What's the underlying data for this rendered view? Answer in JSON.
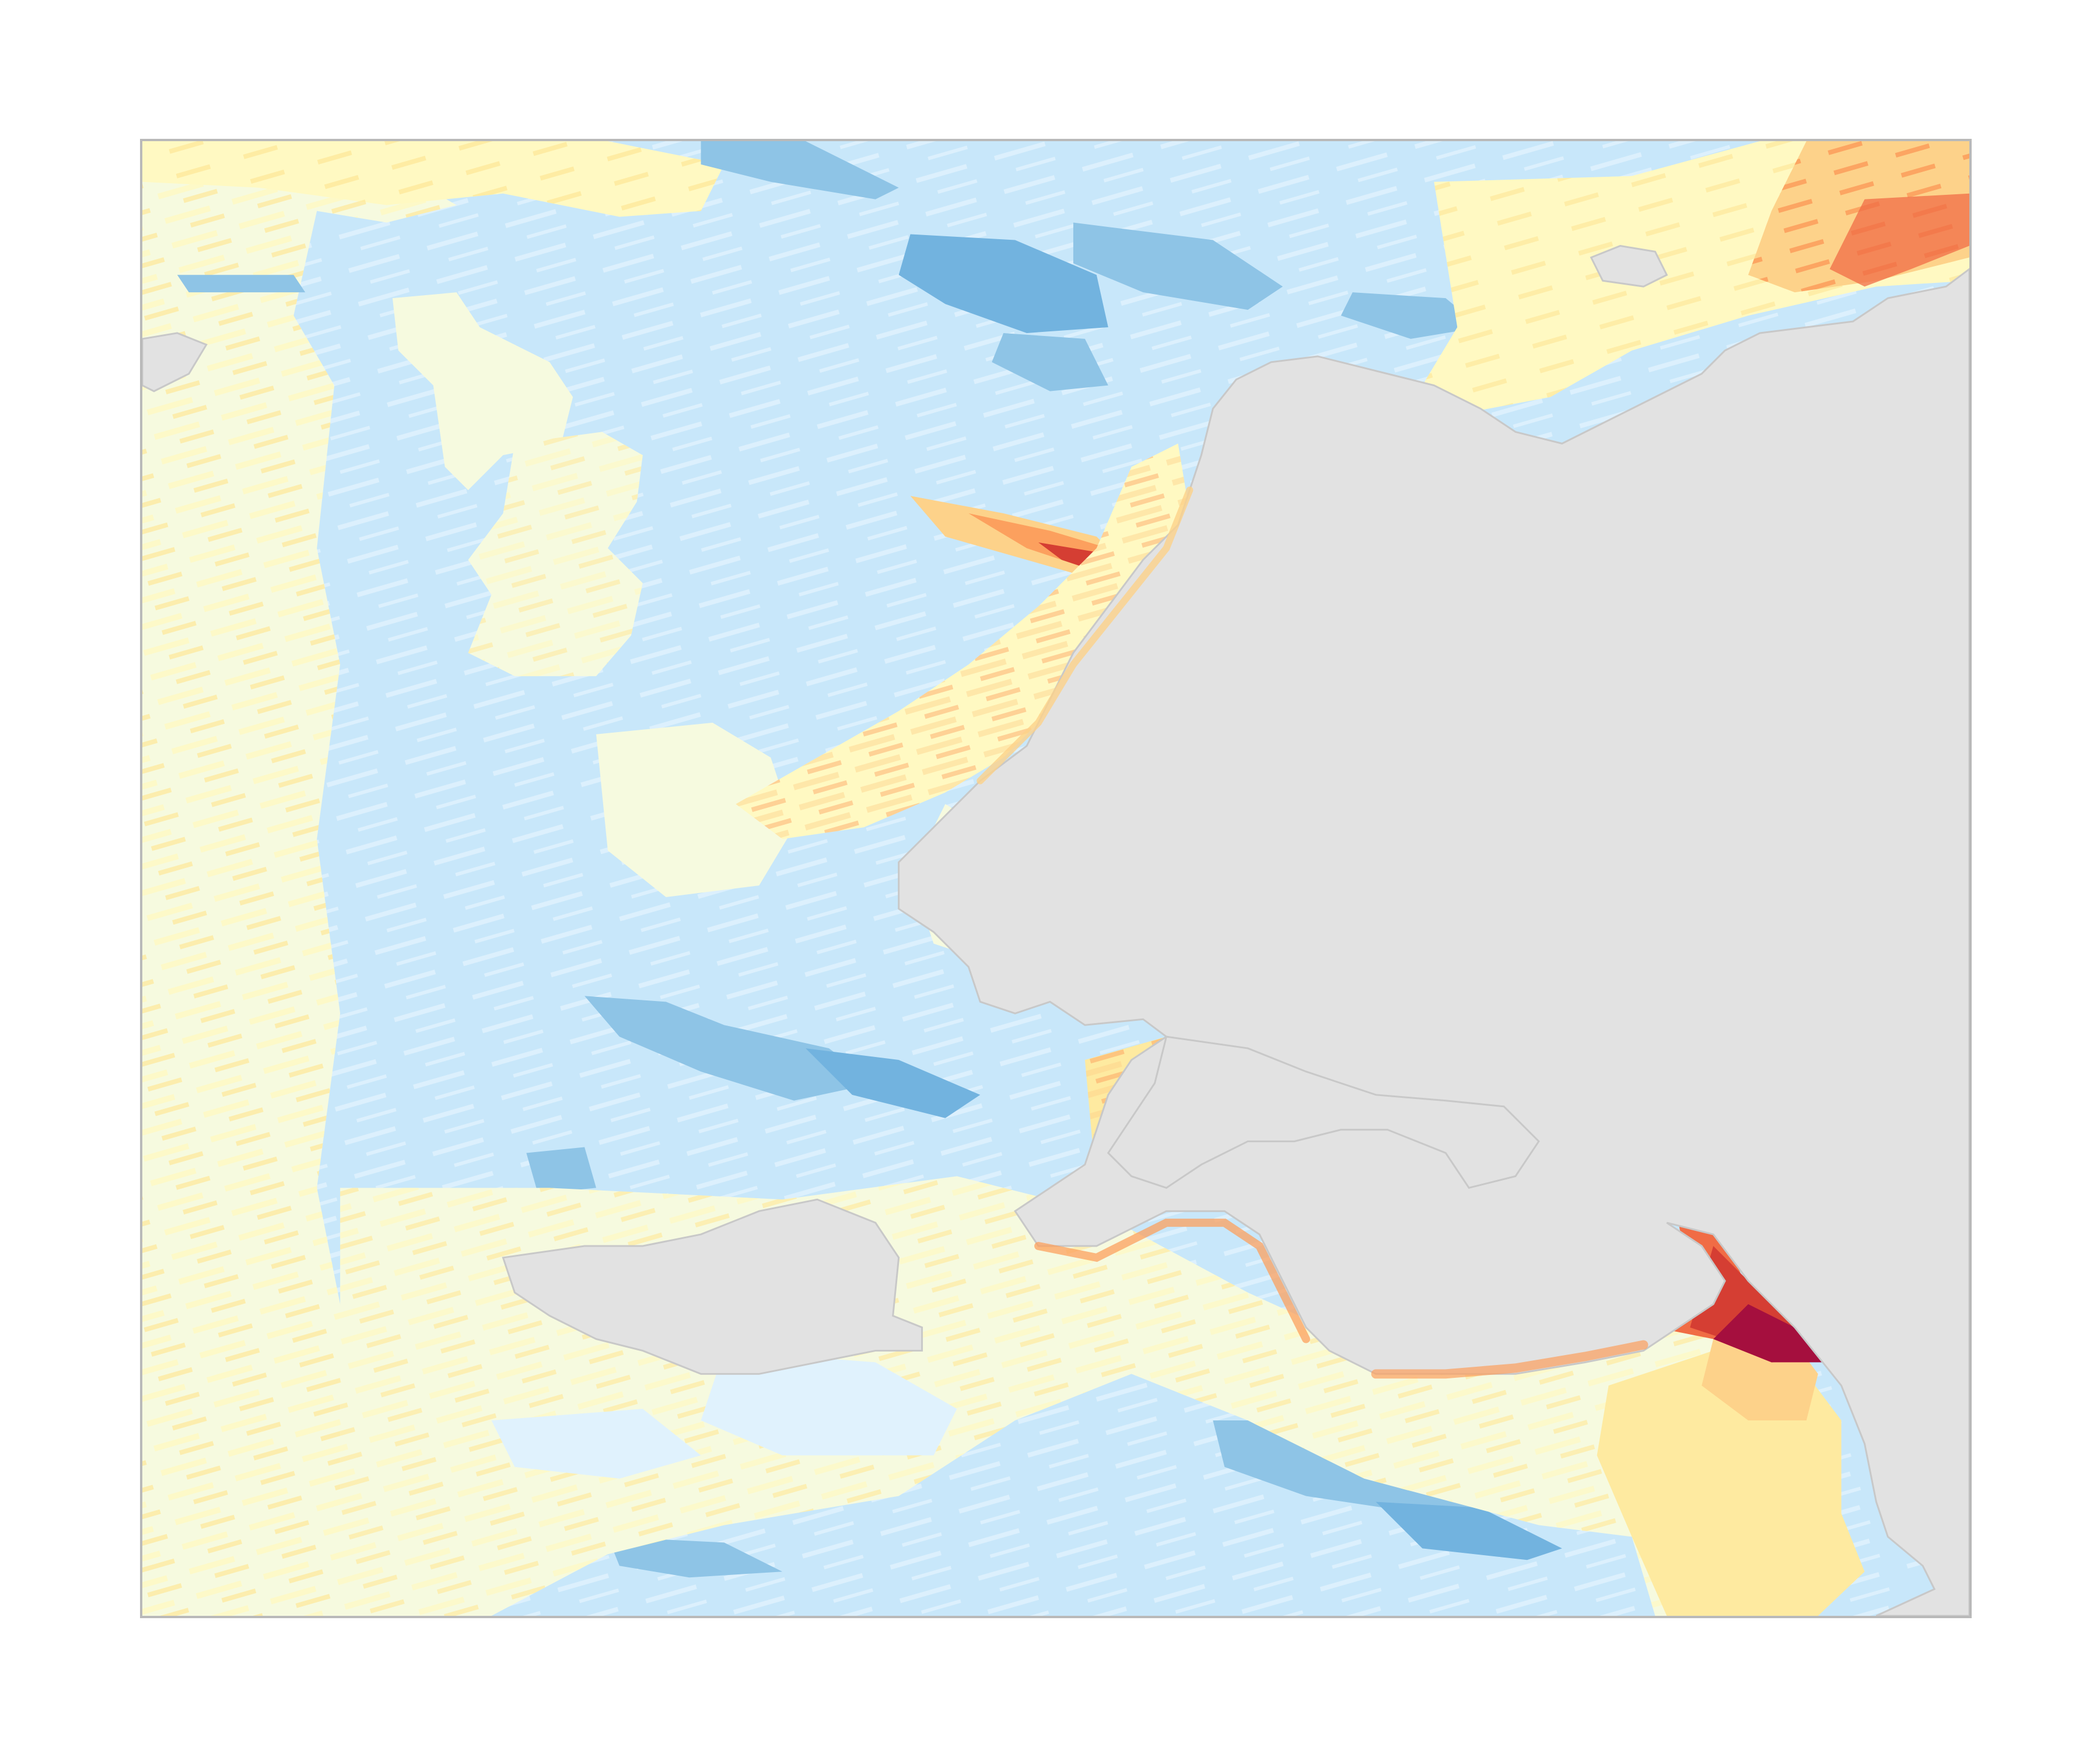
{
  "map": {
    "colors": {
      "water_base": "#c8e7fa",
      "water_light": "#e0f2fd",
      "water_mid": "#8ec4e6",
      "water_deep": "#72b3df",
      "cream": "#f6fadf",
      "pale_yellow": "#fff9c2",
      "yellow": "#feeaa0",
      "light_orange": "#fdd28a",
      "orange": "#fca05e",
      "deep_orange": "#f06c45",
      "red": "#d53e33",
      "crimson": "#a50f3e",
      "land": "#e2e2e2",
      "coastline": "#c8c8c8",
      "frame_border": "#b9b9b9"
    }
  }
}
